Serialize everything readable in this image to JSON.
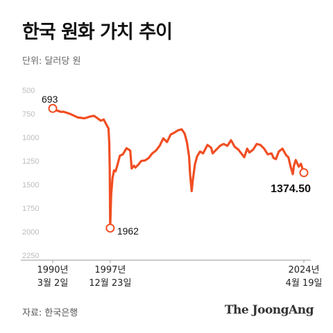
{
  "header": {
    "title": "한국 원화 가치 추이",
    "subtitle": "단위: 달러당 원"
  },
  "footer": {
    "source": "자료: 한국은행",
    "brand": "The JoongAng"
  },
  "colors": {
    "line": "#f04e23",
    "tick_text": "#bbbbbb",
    "axis": "#999999"
  },
  "chart_data": {
    "type": "line",
    "title": "한국 원화 가치 추이",
    "ylabel": "단위: 달러당 원",
    "y_inverted": true,
    "ylim": [
      500,
      2250
    ],
    "y_ticks": [
      "500",
      "750",
      "1000",
      "1250",
      "1500",
      "1750",
      "2000",
      "2250"
    ],
    "xlim": [
      1990.17,
      2024.3
    ],
    "grid": false,
    "x_tick_labels": [
      {
        "x": 1990.17,
        "line1": "1990년",
        "line2": "3월 2일"
      },
      {
        "x": 1997.98,
        "line1": "1997년",
        "line2": "12월 23일"
      },
      {
        "x": 2024.3,
        "line1": "2024년",
        "line2": "4월 19일"
      }
    ],
    "annotations": [
      {
        "x": 1990.17,
        "y": 693,
        "text": "693"
      },
      {
        "x": 1997.98,
        "y": 1962,
        "text": "1962"
      },
      {
        "x": 2024.3,
        "y": 1374.5,
        "text": "1374.50"
      }
    ],
    "series": [
      {
        "x": [
          1990.17,
          1990.6,
          1991.3,
          1991.6,
          1992.3,
          1992.8,
          1993.6,
          1994.5,
          1995.3,
          1995.8,
          1996.3,
          1996.7,
          1997.1,
          1997.6,
          1997.75,
          1997.85,
          1997.92,
          1997.98,
          1998.05,
          1998.12,
          1998.3,
          1998.5,
          1998.7,
          1998.9,
          1999.3,
          1999.7,
          2000.2,
          2000.7,
          2000.9,
          2001.2,
          2001.4,
          2001.8,
          2002.2,
          2002.7,
          2003.2,
          2003.7,
          2004.2,
          2004.7,
          2005.2,
          2005.7,
          2006.2,
          2006.7,
          2007.2,
          2007.7,
          2008.1,
          2008.4,
          2008.7,
          2008.85,
          2009.05,
          2009.2,
          2009.5,
          2009.8,
          2010.2,
          2010.6,
          2011.2,
          2011.7,
          2011.9,
          2012.4,
          2012.9,
          2013.4,
          2013.9,
          2014.4,
          2014.9,
          2015.4,
          2015.9,
          2016.2,
          2016.6,
          2016.9,
          2017.4,
          2017.9,
          2018.4,
          2018.9,
          2019.4,
          2019.9,
          2020.2,
          2020.5,
          2020.9,
          2021.4,
          2021.9,
          2022.2,
          2022.5,
          2022.8,
          2022.95,
          2023.2,
          2023.6,
          2023.9,
          2024.1,
          2024.3
        ],
        "y": [
          693,
          712,
          730,
          728,
          745,
          760,
          790,
          798,
          778,
          772,
          800,
          823,
          810,
          885,
          905,
          1060,
          1350,
          1962,
          1760,
          1600,
          1430,
          1350,
          1360,
          1310,
          1195,
          1180,
          1115,
          1140,
          1330,
          1300,
          1320,
          1290,
          1250,
          1245,
          1220,
          1170,
          1140,
          1090,
          1010,
          1050,
          970,
          950,
          925,
          915,
          960,
          1050,
          1200,
          1400,
          1570,
          1460,
          1285,
          1200,
          1150,
          1170,
          1080,
          1110,
          1170,
          1130,
          1090,
          1070,
          1090,
          1030,
          1100,
          1130,
          1180,
          1210,
          1120,
          1160,
          1130,
          1070,
          1080,
          1120,
          1180,
          1170,
          1220,
          1230,
          1150,
          1120,
          1190,
          1210,
          1310,
          1390,
          1300,
          1240,
          1310,
          1280,
          1330,
          1374.5
        ]
      }
    ]
  }
}
